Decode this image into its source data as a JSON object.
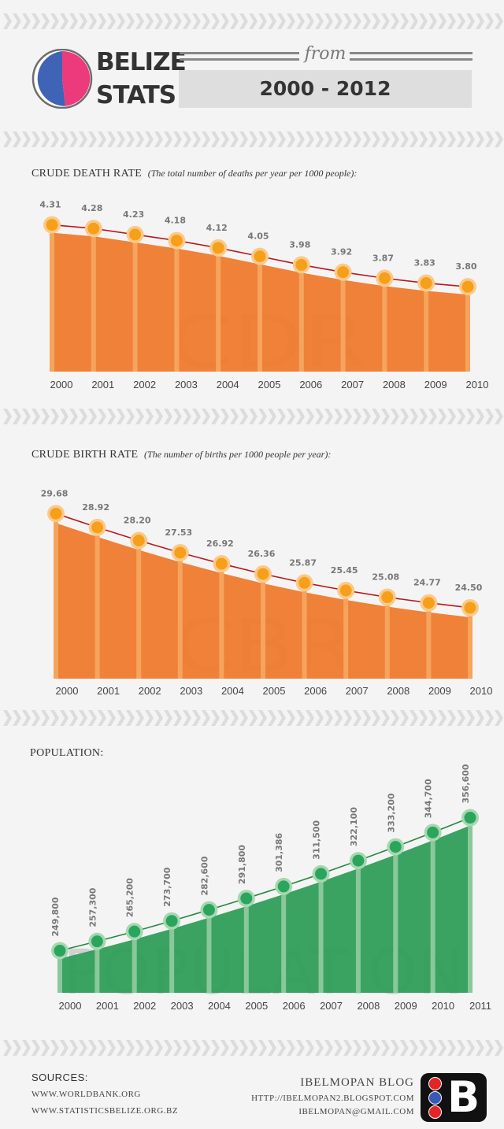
{
  "header": {
    "logo_line1": "BELIZE",
    "logo_line2": "STATS",
    "from_label": "from",
    "year_range": "2000 - 2012",
    "pie_colors": [
      "#3f63b5",
      "#ec3a7c"
    ]
  },
  "colors": {
    "orange_fill": "#ef7a2d",
    "orange_stem": "#f5a45d",
    "orange_dot": "#f6a01a",
    "orange_ring": "#fbc98a",
    "green_fill": "#2f9e5a",
    "green_stem": "#8bc79a",
    "green_dot": "#2aa55c",
    "green_ring": "#a6d7b0",
    "trend_red": "#b7181d",
    "trend_green": "#24893c",
    "chevron": "#dcdcdc"
  },
  "sections": {
    "cdr_title": "CRUDE DEATH RATE",
    "cdr_subtitle": "(The total number of deaths per year per 1000 people):",
    "cbr_title": "CRUDE BIRTH RATE",
    "cbr_subtitle": "(The number of births per 1000 people per year):",
    "pop_title": "POPULATION:"
  },
  "chart_data": [
    {
      "type": "area",
      "title": "CRUDE DEATH RATE",
      "watermark": "CDR",
      "categories": [
        "2000",
        "2001",
        "2002",
        "2003",
        "2004",
        "2005",
        "2006",
        "2007",
        "2008",
        "2009",
        "2010"
      ],
      "values": [
        4.31,
        4.28,
        4.23,
        4.18,
        4.12,
        4.05,
        3.98,
        3.92,
        3.87,
        3.83,
        3.8
      ],
      "labels": [
        "4.31",
        "4.28",
        "4.23",
        "4.18",
        "4.12",
        "4.05",
        "3.98",
        "3.92",
        "3.87",
        "3.83",
        "3.80"
      ],
      "ylim": [
        3.1,
        4.45
      ]
    },
    {
      "type": "area",
      "title": "CRUDE BIRTH RATE",
      "watermark": "CBR",
      "categories": [
        "2000",
        "2001",
        "2002",
        "2003",
        "2004",
        "2005",
        "2006",
        "2007",
        "2008",
        "2009",
        "2010"
      ],
      "values": [
        29.68,
        28.92,
        28.2,
        27.53,
        26.92,
        26.36,
        25.87,
        25.45,
        25.08,
        24.77,
        24.5
      ],
      "labels": [
        "29.68",
        "28.92",
        "28.20",
        "27.53",
        "26.92",
        "26.36",
        "25.87",
        "25.45",
        "25.08",
        "24.77",
        "24.50"
      ],
      "ylim": [
        20.6,
        30.3
      ]
    },
    {
      "type": "area",
      "title": "POPULATION",
      "watermark": "POPULATION",
      "categories": [
        "2000",
        "2001",
        "2002",
        "2003",
        "2004",
        "2005",
        "2006",
        "2007",
        "2008",
        "2009",
        "2010",
        "2011"
      ],
      "values": [
        249800,
        257300,
        265200,
        273700,
        282600,
        291800,
        301386,
        311500,
        322100,
        333200,
        344700,
        356600
      ],
      "labels": [
        "249,800",
        "257,300",
        "265,200",
        "273,700",
        "282,600",
        "291,800",
        "301,386",
        "311,500",
        "322,100",
        "333,200",
        "344,700",
        "356,600"
      ],
      "ylim": [
        216000,
        362000
      ]
    }
  ],
  "footer": {
    "sources_label": "SOURCES:",
    "source_1": "WWW.WORLDBANK.ORG",
    "source_2": "WWW.STATISTICSBELIZE.ORG.BZ",
    "blog_title": "IBELMOPAN BLOG",
    "blog_url": "HTTP://IBELMOPAN2.BLOGSPOT.COM",
    "blog_email": "IBELMOPAN@GMAIL.COM",
    "logo_letter": "B"
  }
}
